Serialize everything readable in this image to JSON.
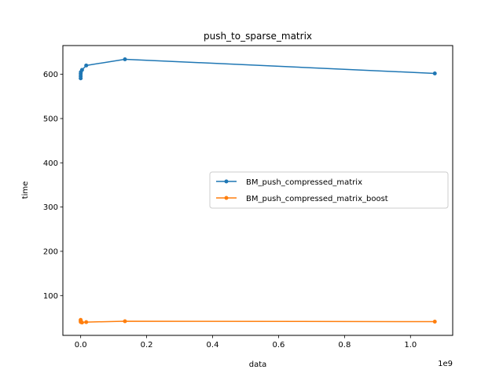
{
  "chart_data": {
    "type": "line",
    "title": "push_to_sparse_matrix",
    "xlabel": "data",
    "ylabel": "time",
    "x_offset_label": "1e9",
    "xlim": [
      -0.054,
      1.128
    ],
    "ylim": [
      10,
      665
    ],
    "xticks": [
      0.0,
      0.2,
      0.4,
      0.6,
      0.8,
      1.0
    ],
    "xtick_labels": [
      "0.0",
      "0.2",
      "0.4",
      "0.6",
      "0.8",
      "1.0"
    ],
    "yticks": [
      100,
      200,
      300,
      400,
      500,
      600
    ],
    "ytick_labels": [
      "100",
      "200",
      "300",
      "400",
      "500",
      "600"
    ],
    "grid": false,
    "legend_position": "center-right",
    "series": [
      {
        "name": "BM_push_compressed_matrix",
        "color": "#1f77b4",
        "x": [
          1e-06,
          8e-06,
          6.4e-05,
          0.000512,
          0.004096,
          0.016777,
          0.134218,
          1.073742
        ],
        "y": [
          591,
          596,
          601,
          605,
          610,
          620,
          634,
          602
        ]
      },
      {
        "name": "BM_push_compressed_matrix_boost",
        "color": "#ff7f0e",
        "x": [
          1e-06,
          8e-06,
          6.4e-05,
          0.000512,
          0.004096,
          0.016777,
          0.134218,
          1.073742
        ],
        "y": [
          45,
          41,
          43,
          40,
          39,
          40,
          42,
          41
        ]
      }
    ]
  }
}
